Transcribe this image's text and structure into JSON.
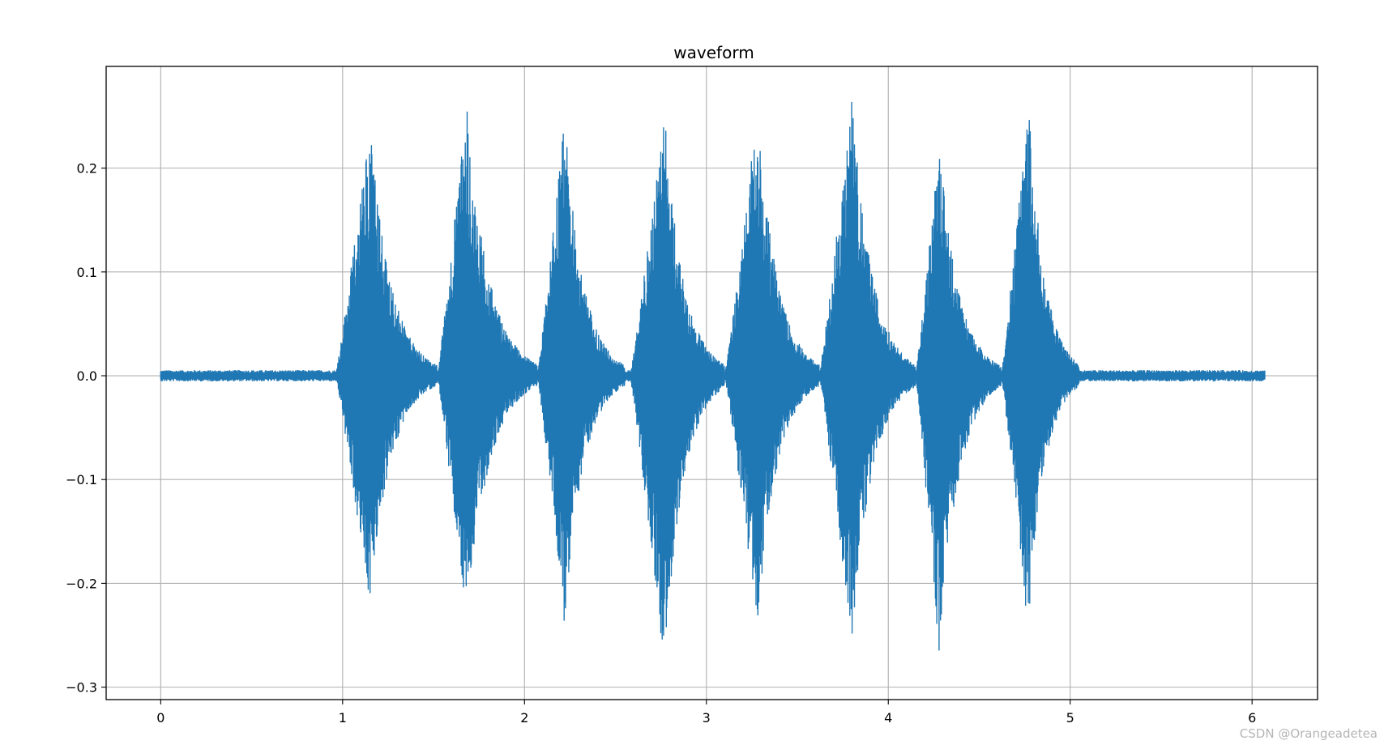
{
  "chart_data": {
    "type": "line",
    "title": "waveform",
    "xlabel": "",
    "ylabel": "",
    "xlim": [
      -0.3,
      6.36
    ],
    "ylim": [
      -0.312,
      0.298
    ],
    "x_ticks": [
      0,
      1,
      2,
      3,
      4,
      5,
      6
    ],
    "x_tick_labels": [
      "0",
      "1",
      "2",
      "3",
      "4",
      "5",
      "6"
    ],
    "y_ticks": [
      0.2,
      0.1,
      0.0,
      -0.1,
      -0.2,
      -0.3
    ],
    "y_tick_labels": [
      "0.2",
      "0.1",
      "0.0",
      "−0.1",
      "−0.2",
      "−0.3"
    ],
    "grid": true,
    "series_color": "#1f77b4",
    "duration": 6.07,
    "noise_floor": 0.005,
    "bursts": [
      {
        "start": 0.96,
        "end": 1.52,
        "peak_time": 1.15,
        "max": 0.245,
        "min": -0.225
      },
      {
        "start": 1.52,
        "end": 2.07,
        "peak_time": 1.68,
        "max": 0.265,
        "min": -0.242
      },
      {
        "start": 2.07,
        "end": 2.55,
        "peak_time": 2.22,
        "max": 0.25,
        "min": -0.24
      },
      {
        "start": 2.58,
        "end": 3.1,
        "peak_time": 2.77,
        "max": 0.255,
        "min": -0.282
      },
      {
        "start": 3.1,
        "end": 3.62,
        "peak_time": 3.28,
        "max": 0.265,
        "min": -0.245
      },
      {
        "start": 3.62,
        "end": 4.15,
        "peak_time": 3.8,
        "max": 0.27,
        "min": -0.26
      },
      {
        "start": 4.15,
        "end": 4.62,
        "peak_time": 4.28,
        "max": 0.228,
        "min": -0.272
      },
      {
        "start": 4.62,
        "end": 5.05,
        "peak_time": 4.77,
        "max": 0.27,
        "min": -0.25
      }
    ]
  },
  "watermark": "CSDN @Orangeadetea"
}
